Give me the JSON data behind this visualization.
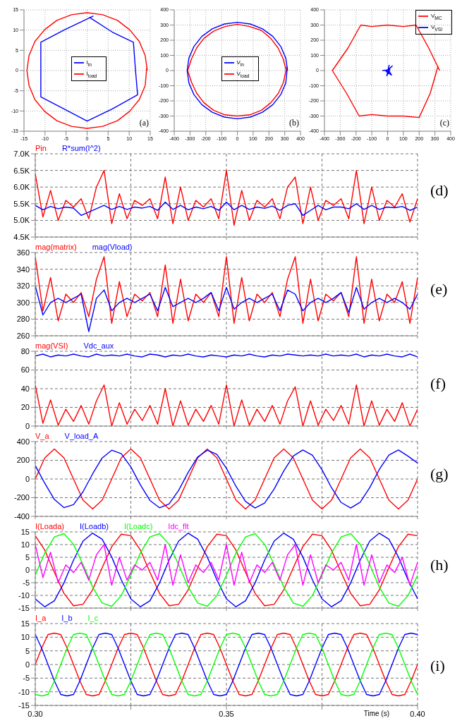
{
  "chart_data": [
    {
      "type": "line",
      "xlim": [
        -15,
        15
      ],
      "xticks": [
        -15,
        -10,
        -5,
        0,
        5,
        10,
        15
      ],
      "ylim": [
        -15,
        15
      ],
      "yticks": [
        -15,
        -10,
        -5,
        0,
        5,
        10,
        15
      ],
      "grid": true,
      "legend": "center",
      "annotations": [
        "(a)"
      ],
      "series": [
        {
          "name": "I$_{load}$",
          "color": "#ff0000",
          "x": [
            14.3,
            13.8,
            12.4,
            10.1,
            7.2,
            3.7,
            0,
            -3.7,
            -7.2,
            -10.1,
            -12.4,
            -13.8,
            -14.3,
            -13.8,
            -12.4,
            -10.1,
            -7.2,
            -3.7,
            0,
            3.7,
            7.2,
            10.1,
            12.4,
            13.8,
            14.2
          ],
          "values": [
            0,
            3.7,
            7.2,
            10.1,
            12.4,
            13.8,
            14.3,
            13.8,
            12.4,
            10.1,
            7.2,
            3.7,
            0,
            -3.7,
            -7.2,
            -10.1,
            -12.4,
            -13.8,
            -14.3,
            -13.8,
            -12.4,
            -10.1,
            -7.2,
            -3.7,
            1
          ]
        },
        {
          "name": "I$_{in}$",
          "color": "#0000ff",
          "x": [
            0.5,
            6,
            11,
            11.5,
            12,
            6,
            0,
            -5.5,
            -11,
            -11,
            -11,
            -5.5,
            1.5
          ],
          "values": [
            13.2,
            9.5,
            7,
            0,
            -6,
            -9.5,
            -12.5,
            -9.5,
            -6.5,
            0,
            7,
            10,
            13.5
          ]
        }
      ]
    },
    {
      "type": "line",
      "xlim": [
        -400,
        400
      ],
      "xticks": [
        -400,
        -300,
        -200,
        -100,
        0,
        100,
        200,
        300,
        400
      ],
      "ylim": [
        -400,
        400
      ],
      "yticks": [
        -400,
        -300,
        -200,
        -100,
        0,
        100,
        200,
        300,
        400
      ],
      "grid": true,
      "legend": "center",
      "annotations": [
        "(b)"
      ],
      "series": [
        {
          "name": "V$_{load}$",
          "color": "#ff0000",
          "x": [
            310,
            290,
            258,
            212,
            153,
            78,
            0,
            -78,
            -150,
            -212,
            -258,
            -290,
            -315,
            -290,
            -258,
            -212,
            -150,
            -78,
            0,
            78,
            152,
            212,
            260,
            292,
            312
          ],
          "values": [
            0,
            78,
            149,
            212,
            264,
            290,
            305,
            290,
            260,
            212,
            149,
            78,
            0,
            -78,
            -149,
            -212,
            -262,
            -292,
            -300,
            -292,
            -262,
            -212,
            -150,
            -78,
            20
          ]
        },
        {
          "name": "V$_{in}$",
          "color": "#0000ff",
          "x": [
            318,
            307,
            275,
            225,
            159,
            82,
            0,
            -82,
            -159,
            -225,
            -275,
            -307,
            -318,
            -307,
            -275,
            -225,
            -159,
            -82,
            0,
            82,
            159,
            225,
            275,
            307,
            317
          ],
          "values": [
            0,
            82,
            159,
            225,
            275,
            307,
            318,
            307,
            275,
            225,
            159,
            82,
            0,
            -82,
            -159,
            -225,
            -275,
            -307,
            -318,
            -307,
            -275,
            -225,
            -159,
            -82,
            25
          ]
        }
      ]
    },
    {
      "type": "line",
      "xlim": [
        -400,
        400
      ],
      "xticks": [
        -400,
        -300,
        -200,
        -100,
        0,
        100,
        200,
        300,
        400
      ],
      "ylim": [
        -400,
        400
      ],
      "yticks": [
        -400,
        -300,
        -200,
        -100,
        0,
        100,
        200,
        300,
        400
      ],
      "grid": true,
      "legend": "top right",
      "annotations": [
        "(c)"
      ],
      "series": [
        {
          "name": "V$_{MC}$",
          "color": "#ff0000",
          "x": [
            330,
            260,
            180,
            100,
            0,
            -100,
            -170,
            -250,
            -350,
            -260,
            -180,
            -100,
            0,
            100,
            200,
            270,
            320
          ],
          "values": [
            0,
            150,
            300,
            290,
            300,
            290,
            300,
            150,
            0,
            -150,
            -300,
            -290,
            -300,
            -300,
            -310,
            -150,
            30
          ]
        },
        {
          "name": "V$_{VSI}$",
          "color": "#0000ff",
          "x": [
            0,
            30,
            -10,
            25,
            5,
            -30,
            2,
            10,
            -5,
            15
          ],
          "values": [
            0,
            30,
            -5,
            -30,
            5,
            0,
            3,
            35,
            -35,
            10
          ]
        }
      ]
    },
    {
      "type": "line",
      "tick_labels": "y",
      "grid": true,
      "legend": "top left",
      "annotations": [
        "(d)"
      ],
      "xlim": [
        0.3,
        0.4
      ],
      "xticks": [
        {
          "value": 0.3,
          "label": null
        },
        {
          "value": 0.325,
          "label": null
        },
        {
          "value": 0.35,
          "label": null
        },
        {
          "value": 0.375,
          "label": null
        },
        {
          "value": 0.4,
          "label": null
        }
      ],
      "ylim": [
        4500,
        7000
      ],
      "yticks": [
        {
          "value": 4500,
          "label": "4.5K"
        },
        {
          "value": 5000,
          "label": "5.0K"
        },
        {
          "value": 5500,
          "label": "5.5K"
        },
        {
          "value": 6000,
          "label": "6.0K"
        },
        {
          "value": 6500,
          "label": "6.5K"
        },
        {
          "value": 7000,
          "label": "7.0K"
        }
      ],
      "x": [
        0.3,
        0.302,
        0.304,
        0.306,
        0.308,
        0.31,
        0.312,
        0.314,
        0.316,
        0.318,
        0.32,
        0.322,
        0.324,
        0.326,
        0.328,
        0.33,
        0.332,
        0.334,
        0.336,
        0.338,
        0.34,
        0.342,
        0.344,
        0.346,
        0.348,
        0.35,
        0.352,
        0.354,
        0.356,
        0.358,
        0.36,
        0.362,
        0.364,
        0.366,
        0.368,
        0.37,
        0.372,
        0.374,
        0.376,
        0.378,
        0.38,
        0.382,
        0.384,
        0.386,
        0.388,
        0.39,
        0.392,
        0.394,
        0.396,
        0.398,
        0.4
      ],
      "series": [
        {
          "name": "Pin",
          "color": "#ff0000",
          "values": [
            6400,
            5100,
            5900,
            5000,
            5600,
            5400,
            5650,
            5050,
            6000,
            6500,
            4900,
            5800,
            5050,
            5600,
            5450,
            5650,
            5050,
            6300,
            4900,
            6000,
            5000,
            5600,
            5400,
            5650,
            5050,
            6500,
            4850,
            5900,
            5000,
            5600,
            5400,
            5650,
            5050,
            6000,
            6300,
            4900,
            6000,
            5000,
            5600,
            5450,
            5650,
            5050,
            6500,
            4900,
            6000,
            5000,
            5600,
            5400,
            5800,
            4950,
            5650
          ]
        },
        {
          "name": "R*sum(I^2)",
          "color": "#0000ff",
          "values": [
            5450,
            5320,
            5420,
            5350,
            5400,
            5370,
            5150,
            5250,
            5350,
            5450,
            5330,
            5420,
            5330,
            5400,
            5370,
            5420,
            5300,
            5550,
            5330,
            5450,
            5320,
            5400,
            5350,
            5420,
            5300,
            5550,
            5320,
            5450,
            5330,
            5400,
            5360,
            5430,
            5300,
            5450,
            5500,
            5150,
            5300,
            5450,
            5320,
            5400,
            5400,
            5350,
            5500,
            5330,
            5450,
            5330,
            5400,
            5380,
            5420,
            5300,
            5400
          ]
        }
      ]
    },
    {
      "type": "line",
      "tick_labels": "y",
      "grid": true,
      "legend": "top left",
      "annotations": [
        "(e)"
      ],
      "xlim": [
        0.3,
        0.4
      ],
      "xticks": [
        {
          "value": 0.3,
          "label": null
        },
        {
          "value": 0.325,
          "label": null
        },
        {
          "value": 0.35,
          "label": null
        },
        {
          "value": 0.375,
          "label": null
        },
        {
          "value": 0.4,
          "label": null
        }
      ],
      "ylim": [
        260,
        360
      ],
      "yticks": [
        260,
        280,
        300,
        320,
        340,
        360
      ],
      "x": [
        0.3,
        0.302,
        0.304,
        0.306,
        0.308,
        0.31,
        0.312,
        0.314,
        0.316,
        0.318,
        0.32,
        0.322,
        0.324,
        0.326,
        0.328,
        0.33,
        0.332,
        0.334,
        0.336,
        0.338,
        0.34,
        0.342,
        0.344,
        0.346,
        0.348,
        0.35,
        0.352,
        0.354,
        0.356,
        0.358,
        0.36,
        0.362,
        0.364,
        0.366,
        0.368,
        0.37,
        0.372,
        0.374,
        0.376,
        0.378,
        0.38,
        0.382,
        0.384,
        0.386,
        0.388,
        0.39,
        0.392,
        0.394,
        0.396,
        0.398,
        0.4
      ],
      "series": [
        {
          "name": "mag(matrix)",
          "color": "#ff0000",
          "values": [
            355,
            290,
            330,
            278,
            310,
            300,
            312,
            283,
            328,
            355,
            275,
            325,
            283,
            310,
            302,
            312,
            283,
            345,
            275,
            328,
            278,
            310,
            300,
            312,
            283,
            355,
            275,
            330,
            278,
            310,
            300,
            312,
            283,
            328,
            355,
            275,
            328,
            278,
            310,
            302,
            312,
            283,
            355,
            275,
            328,
            278,
            310,
            300,
            325,
            275,
            330
          ]
        },
        {
          "name": "mag(Vload)",
          "color": "#0000ff",
          "values": [
            320,
            285,
            300,
            305,
            300,
            305,
            310,
            265,
            305,
            315,
            290,
            300,
            305,
            300,
            305,
            310,
            290,
            318,
            295,
            300,
            305,
            300,
            305,
            312,
            290,
            318,
            292,
            300,
            305,
            300,
            305,
            310,
            290,
            315,
            310,
            290,
            300,
            305,
            300,
            305,
            312,
            288,
            318,
            292,
            300,
            305,
            300,
            305,
            300,
            292,
            310
          ]
        }
      ]
    },
    {
      "type": "line",
      "tick_labels": "y",
      "grid": true,
      "legend": "top left",
      "annotations": [
        "(f)"
      ],
      "xlim": [
        0.3,
        0.4
      ],
      "xticks": [
        {
          "value": 0.3,
          "label": null
        },
        {
          "value": 0.325,
          "label": null
        },
        {
          "value": 0.35,
          "label": null
        },
        {
          "value": 0.375,
          "label": null
        },
        {
          "value": 0.4,
          "label": null
        }
      ],
      "ylim": [
        0,
        80
      ],
      "yticks": [
        0,
        20,
        40,
        60,
        80
      ],
      "x": [
        0.3,
        0.302,
        0.304,
        0.306,
        0.308,
        0.31,
        0.312,
        0.314,
        0.316,
        0.318,
        0.32,
        0.322,
        0.324,
        0.326,
        0.328,
        0.33,
        0.332,
        0.334,
        0.336,
        0.338,
        0.34,
        0.342,
        0.344,
        0.346,
        0.348,
        0.35,
        0.352,
        0.354,
        0.356,
        0.358,
        0.36,
        0.362,
        0.364,
        0.366,
        0.368,
        0.37,
        0.372,
        0.374,
        0.376,
        0.378,
        0.38,
        0.382,
        0.384,
        0.386,
        0.388,
        0.39,
        0.392,
        0.394,
        0.396,
        0.398,
        0.4
      ],
      "series": [
        {
          "name": "mag(VSI)",
          "color": "#ff0000",
          "values": [
            44,
            3,
            28,
            1,
            18,
            5,
            22,
            2,
            27,
            44,
            0,
            25,
            2,
            18,
            6,
            22,
            2,
            40,
            0,
            27,
            1,
            18,
            5,
            22,
            2,
            44,
            0,
            28,
            1,
            18,
            5,
            22,
            2,
            27,
            42,
            0,
            27,
            1,
            18,
            6,
            22,
            2,
            44,
            0,
            27,
            1,
            18,
            5,
            25,
            0,
            18
          ]
        },
        {
          "name": "Vdc_aux",
          "color": "#0000ff",
          "values": [
            75,
            77,
            74,
            76,
            75,
            77,
            75,
            74,
            77,
            75,
            76,
            75,
            77,
            75,
            74,
            77,
            76,
            74,
            76,
            75,
            77,
            75,
            74,
            76,
            75,
            74,
            76,
            75,
            77,
            75,
            74,
            76,
            75,
            77,
            76,
            75,
            76,
            75,
            77,
            75,
            76,
            75,
            77,
            74,
            76,
            75,
            77,
            75,
            74,
            77,
            74
          ]
        }
      ]
    },
    {
      "type": "line",
      "tick_labels": "y",
      "grid": true,
      "legend": "top left",
      "annotations": [
        "(g)"
      ],
      "xlim": [
        0.3,
        0.4
      ],
      "xticks": [
        {
          "value": 0.3,
          "label": null
        },
        {
          "value": 0.325,
          "label": null
        },
        {
          "value": 0.35,
          "label": null
        },
        {
          "value": 0.375,
          "label": null
        },
        {
          "value": 0.4,
          "label": null
        }
      ],
      "ylim": [
        -400,
        400
      ],
      "yticks": [
        -400,
        -200,
        0,
        200,
        400
      ],
      "x": [
        0.3,
        0.3025,
        0.305,
        0.3075,
        0.31,
        0.3125,
        0.315,
        0.3175,
        0.32,
        0.3225,
        0.325,
        0.3275,
        0.33,
        0.3325,
        0.335,
        0.3375,
        0.34,
        0.3425,
        0.345,
        0.3475,
        0.35,
        0.3525,
        0.355,
        0.3575,
        0.36,
        0.3625,
        0.365,
        0.3675,
        0.37,
        0.3725,
        0.375,
        0.3775,
        0.38,
        0.3825,
        0.385,
        0.3875,
        0.39,
        0.3925,
        0.395,
        0.3975,
        0.4
      ],
      "series": [
        {
          "name": "V_a",
          "color": "#ff0000",
          "values": [
            0,
            226,
            320,
            226,
            0,
            -226,
            -320,
            -226,
            0,
            226,
            320,
            226,
            0,
            -226,
            -320,
            -226,
            0,
            226,
            320,
            226,
            0,
            -226,
            -320,
            -226,
            0,
            226,
            320,
            226,
            0,
            -226,
            -320,
            -226,
            0,
            226,
            320,
            226,
            0,
            -226,
            -320,
            -226,
            0
          ]
        },
        {
          "name": "V_load_A",
          "color": "#0000ff",
          "values": [
            144,
            -47,
            -219,
            -306,
            -275,
            -136,
            55,
            225,
            308,
            271,
            129,
            -63,
            -230,
            -308,
            -267,
            -122,
            71,
            236,
            309,
            263,
            114,
            -79,
            -241,
            -310,
            -258,
            -107,
            86,
            246,
            310,
            254,
            99,
            -94,
            -251,
            -310,
            -249,
            -91,
            102,
            255,
            310,
            244,
            170
          ]
        }
      ]
    },
    {
      "type": "line",
      "tick_labels": "y",
      "grid": true,
      "legend": "top left",
      "annotations": [
        "(h)"
      ],
      "xlim": [
        0.3,
        0.4
      ],
      "xticks": [
        {
          "value": 0.3,
          "label": null
        },
        {
          "value": 0.325,
          "label": null
        },
        {
          "value": 0.35,
          "label": null
        },
        {
          "value": 0.375,
          "label": null
        },
        {
          "value": 0.4,
          "label": null
        }
      ],
      "ylim": [
        -15,
        15
      ],
      "yticks": [
        -15,
        -10,
        -5,
        0,
        5,
        10,
        15
      ],
      "x": [
        0.3,
        0.3025,
        0.305,
        0.3075,
        0.31,
        0.3125,
        0.315,
        0.3175,
        0.32,
        0.3225,
        0.325,
        0.3275,
        0.33,
        0.3325,
        0.335,
        0.3375,
        0.34,
        0.3425,
        0.345,
        0.3475,
        0.35,
        0.3525,
        0.355,
        0.3575,
        0.36,
        0.3625,
        0.365,
        0.3675,
        0.37,
        0.3725,
        0.375,
        0.3775,
        0.38,
        0.3825,
        0.385,
        0.3875,
        0.39,
        0.3925,
        0.395,
        0.3975,
        0.4
      ],
      "series": [
        {
          "name": "I(Loada)",
          "color": "#ff0000",
          "values": [
            13.5,
            7.8,
            -0.9,
            -9.2,
            -14.1,
            -13.5,
            -7.8,
            0.9,
            9.2,
            14.1,
            13.5,
            7.8,
            -0.9,
            -9.2,
            -14.1,
            -13.5,
            -7.8,
            0.9,
            9.2,
            14.1,
            13.5,
            7.8,
            -0.9,
            -9.2,
            -14.1,
            -13.5,
            -7.8,
            0.9,
            9.2,
            14.1,
            13.5,
            7.8,
            -0.9,
            -9.2,
            -14.1,
            -13.5,
            -7.8,
            0.9,
            9.2,
            14.1,
            13.5
          ]
        },
        {
          "name": "I(Loadb)",
          "color": "#0000ff",
          "values": [
            -11.4,
            -14.5,
            -12.1,
            -5.1,
            3.9,
            11.4,
            14.5,
            12.1,
            5.1,
            -3.9,
            -11.4,
            -14.5,
            -12.1,
            -5.1,
            3.9,
            11.4,
            14.5,
            12.1,
            5.1,
            -3.9,
            -11.4,
            -14.5,
            -12.1,
            -5.1,
            3.9,
            11.4,
            14.5,
            12.1,
            5.1,
            -3.9,
            -11.4,
            -14.5,
            -12.1,
            -5.1,
            3.9,
            11.4,
            14.5,
            12.1,
            5.1,
            -3.9,
            -11.4
          ]
        },
        {
          "name": "I(Loadc)",
          "color": "#00ff00",
          "values": [
            -2.1,
            6.7,
            13,
            14.3,
            10.1,
            2.1,
            -6.7,
            -13,
            -14.3,
            -10.1,
            -2.1,
            6.7,
            13,
            14.3,
            10.1,
            2.1,
            -6.7,
            -13,
            -14.3,
            -10.1,
            -2.1,
            6.7,
            13,
            14.3,
            10.1,
            2.1,
            -6.7,
            -13,
            -14.3,
            -10.1,
            -2.1,
            6.7,
            13,
            14.3,
            10.1,
            2.1,
            -6.7,
            -13,
            -14.3,
            -10.1,
            -2.1
          ]
        },
        {
          "name": "Idc_flt",
          "color": "#ff00ff",
          "x": [
            0.3,
            0.302,
            0.304,
            0.306,
            0.308,
            0.31,
            0.312,
            0.314,
            0.316,
            0.318,
            0.32,
            0.322,
            0.324,
            0.326,
            0.328,
            0.33,
            0.332,
            0.334,
            0.336,
            0.338,
            0.34,
            0.342,
            0.344,
            0.346,
            0.348,
            0.35,
            0.352,
            0.354,
            0.356,
            0.358,
            0.36,
            0.362,
            0.364,
            0.366,
            0.368,
            0.37,
            0.372,
            0.374,
            0.376,
            0.378,
            0.38,
            0.382,
            0.384,
            0.386,
            0.388,
            0.39,
            0.392,
            0.394,
            0.396,
            0.398,
            0.4
          ],
          "values": [
            10,
            -3,
            7,
            -5,
            2,
            -1,
            3,
            -4,
            6,
            10,
            -6,
            5,
            -4,
            2,
            0,
            3,
            -4,
            10,
            -6,
            6,
            -5,
            2,
            -1,
            3,
            -4,
            10,
            -6,
            7,
            -5,
            2,
            -1,
            3,
            -4,
            6,
            10,
            -6,
            6,
            -5,
            2,
            0,
            3,
            -4,
            10,
            -6,
            6,
            -5,
            2,
            -1,
            5,
            -6,
            3
          ]
        }
      ]
    },
    {
      "type": "line",
      "grid": true,
      "legend": "top left",
      "annotations": [
        "(i)"
      ],
      "xlabel": "Time (s)",
      "xlim": [
        0.3,
        0.4
      ],
      "xticks": [
        {
          "value": 0.3,
          "label": "0.30"
        },
        {
          "value": 0.325,
          "label": null
        },
        {
          "value": 0.35,
          "label": "0.35"
        },
        {
          "value": 0.375,
          "label": null
        },
        {
          "value": 0.4,
          "label": "0.40"
        }
      ],
      "ylim": [
        -15,
        15
      ],
      "yticks": [
        -15,
        -10,
        -5,
        0,
        5,
        10,
        15
      ],
      "x": [
        0.3,
        0.30167,
        0.30333,
        0.305,
        0.30667,
        0.30833,
        0.31,
        0.31167,
        0.31333,
        0.315,
        0.31667,
        0.31833,
        0.32,
        0.32167,
        0.32333,
        0.325,
        0.32667,
        0.32833,
        0.33,
        0.33167,
        0.33333,
        0.335,
        0.33667,
        0.33833,
        0.34,
        0.34167,
        0.34333,
        0.345,
        0.34667,
        0.34833,
        0.35,
        0.35167,
        0.35333,
        0.355,
        0.35667,
        0.35833,
        0.36,
        0.36167,
        0.36333,
        0.365,
        0.36667,
        0.36833,
        0.37,
        0.37167,
        0.37333,
        0.375,
        0.37667,
        0.37833,
        0.38,
        0.38167,
        0.38333,
        0.385,
        0.38667,
        0.38833,
        0.39,
        0.39167,
        0.39333,
        0.395,
        0.39667,
        0.39833,
        0.4
      ],
      "series": [
        {
          "name": "I_a",
          "color": "#ff0000",
          "values": [
            0,
            6,
            11,
            11.5,
            11,
            6,
            0,
            -6,
            -11,
            -11.5,
            -11,
            -6,
            0,
            6,
            11,
            11.5,
            11,
            6,
            0,
            -6,
            -11,
            -11.5,
            -11,
            -6,
            0,
            6,
            11,
            11.5,
            11,
            6,
            0,
            -6,
            -11,
            -11.5,
            -11,
            -6,
            0,
            6,
            11,
            11.5,
            11,
            6,
            0,
            -6,
            -11,
            -11.5,
            -11,
            -6,
            0,
            6,
            11,
            11.5,
            11,
            6,
            0,
            -6,
            -11,
            -11.5,
            -11,
            -6,
            0
          ]
        },
        {
          "name": "I_b",
          "color": "#0000ff",
          "values": [
            11,
            6,
            0,
            -6,
            -11,
            -11.5,
            -11,
            -6,
            0,
            6,
            11,
            11.5,
            11,
            6,
            0,
            -6,
            -11,
            -11.5,
            -11,
            -6,
            0,
            6,
            11,
            11.5,
            11,
            6,
            0,
            -6,
            -11,
            -11.5,
            -11,
            -6,
            0,
            6,
            11,
            11.5,
            11,
            6,
            0,
            -6,
            -11,
            -11.5,
            -11,
            -6,
            0,
            6,
            11,
            11.5,
            11,
            6,
            0,
            -6,
            -11,
            -11.5,
            -11,
            -6,
            0,
            6,
            11,
            11.5,
            11
          ]
        },
        {
          "name": "I_c",
          "color": "#00ff00",
          "values": [
            -11,
            -11.5,
            -11,
            -6,
            0,
            6,
            11,
            11.5,
            11,
            6,
            0,
            -6,
            -11,
            -11.5,
            -11,
            -6,
            0,
            6,
            11,
            11.5,
            11,
            6,
            0,
            -6,
            -11,
            -11.5,
            -11,
            -6,
            0,
            6,
            11,
            11.5,
            11,
            6,
            0,
            -6,
            -11,
            -11.5,
            -11,
            -6,
            0,
            6,
            11,
            11.5,
            11,
            6,
            0,
            -6,
            -11,
            -11.5,
            -11,
            -6,
            0,
            6,
            11,
            11.5,
            11,
            6,
            0,
            -6,
            -11
          ]
        }
      ]
    }
  ]
}
